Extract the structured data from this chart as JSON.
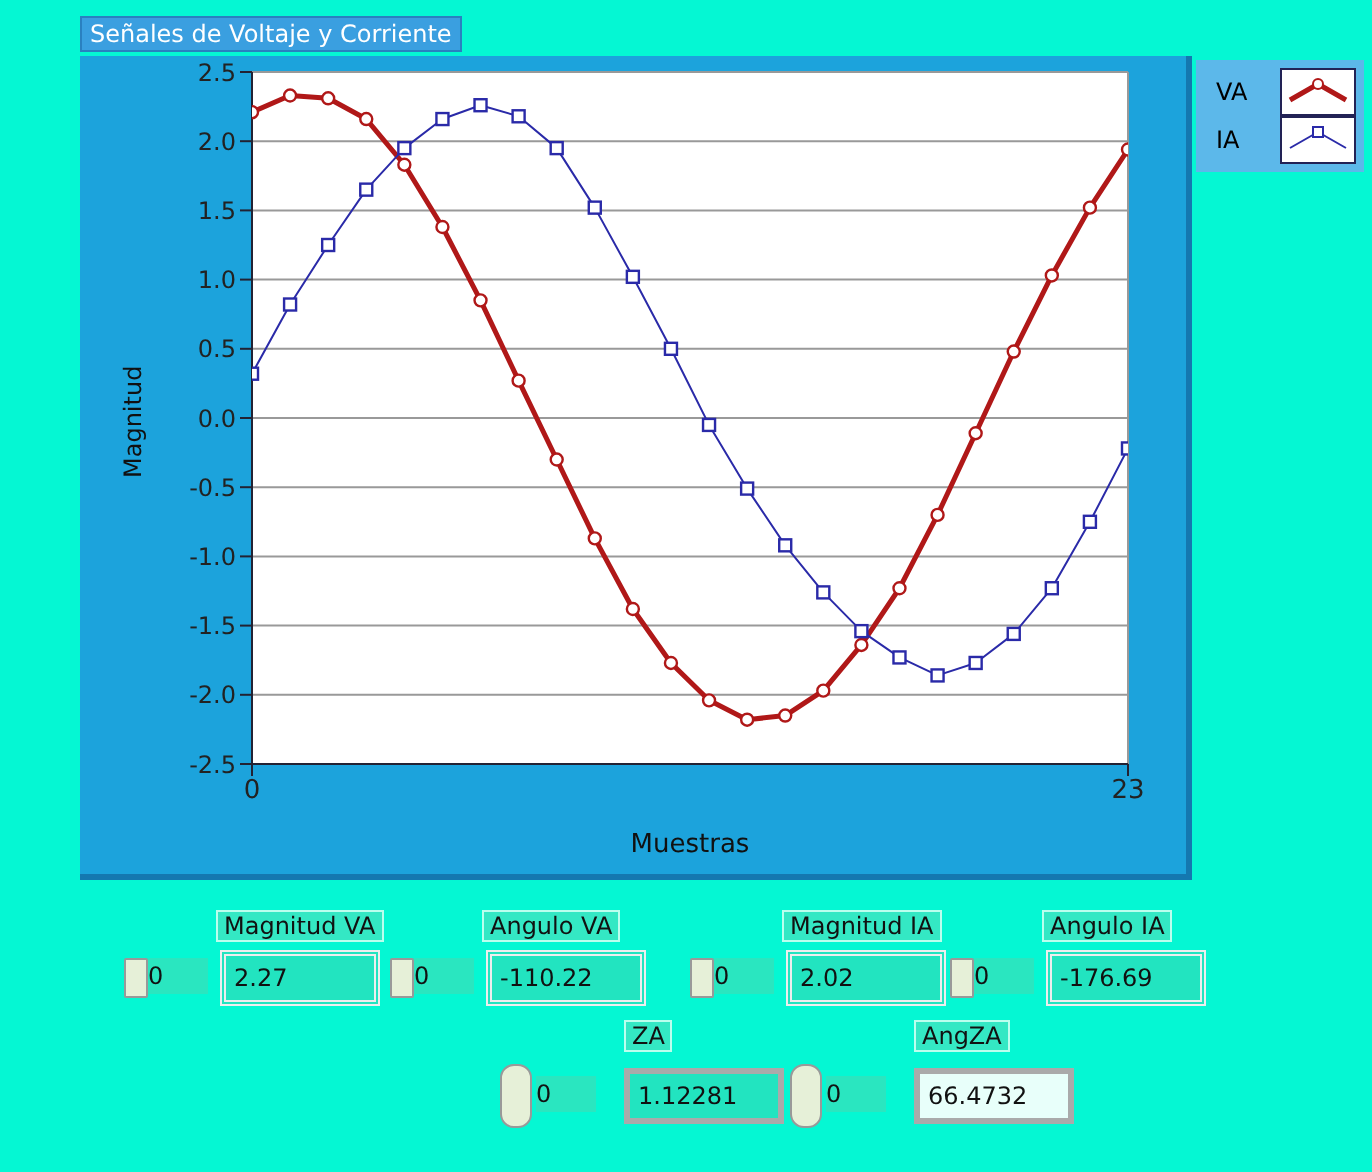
{
  "chart_data": [
    {
      "type": "line",
      "title": "Señales de Voltaje y Corriente",
      "xlabel": "Muestras",
      "ylabel": "Magnitud",
      "x": [
        0,
        1,
        2,
        3,
        4,
        5,
        6,
        7,
        8,
        9,
        10,
        11,
        12,
        13,
        14,
        15,
        16,
        17,
        18,
        19,
        20,
        21,
        22,
        23
      ],
      "series": [
        {
          "name": "VA",
          "color": "#b01818",
          "marker": "circle",
          "values": [
            2.21,
            2.33,
            2.31,
            2.16,
            1.83,
            1.38,
            0.85,
            0.27,
            -0.3,
            -0.87,
            -1.38,
            -1.77,
            -2.04,
            -2.18,
            -2.15,
            -1.97,
            -1.64,
            -1.23,
            -0.7,
            -0.11,
            0.48,
            1.03,
            1.52,
            1.94
          ]
        },
        {
          "name": "IA",
          "color": "#2a2aa8",
          "marker": "square",
          "values": [
            0.32,
            0.82,
            1.25,
            1.65,
            1.95,
            2.16,
            2.26,
            2.18,
            1.95,
            1.52,
            1.02,
            0.5,
            -0.05,
            -0.51,
            -0.92,
            -1.26,
            -1.54,
            -1.73,
            -1.86,
            -1.77,
            -1.56,
            -1.23,
            -0.75,
            -0.22
          ]
        }
      ],
      "xlim": [
        0,
        23
      ],
      "xticks": [
        {
          "value": 0,
          "label": "0"
        },
        {
          "value": 23,
          "label": "23"
        }
      ],
      "ylim": [
        -2.5,
        2.5
      ],
      "yticks": [
        {
          "value": -2.5,
          "label": "-2.5"
        },
        {
          "value": -2,
          "label": "-2.0"
        },
        {
          "value": -1.5,
          "label": "-1.5"
        },
        {
          "value": -1,
          "label": "-1.0"
        },
        {
          "value": -0.5,
          "label": "-0.5"
        },
        {
          "value": 0,
          "label": "0.0"
        },
        {
          "value": 0.5,
          "label": "0.5"
        },
        {
          "value": 1,
          "label": "1.0"
        },
        {
          "value": 1.5,
          "label": "1.5"
        },
        {
          "value": 2,
          "label": "2.0"
        },
        {
          "value": 2.5,
          "label": "2.5"
        }
      ],
      "grid": true,
      "legend": "top right"
    },
    {
      "type": "other",
      "annotations": [
        "Magnitud VA",
        "0",
        "2.27",
        "Angulo VA",
        "0",
        "-110.22",
        "Magnitud IA",
        "0",
        "2.02",
        "Angulo IA",
        "0",
        "-176.69",
        "ZA",
        "0",
        "1.12281",
        "AngZA",
        "0",
        "66.4732"
      ]
    }
  ]
}
